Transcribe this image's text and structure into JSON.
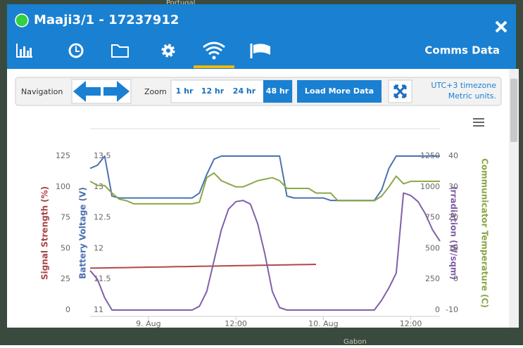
{
  "map_labels": [
    "Portugal",
    "Gabon"
  ],
  "window": {
    "title": "Maaji3/1 - 17237912",
    "section": "Comms Data"
  },
  "toolbar": {
    "navigation": "Navigation",
    "zoom": "Zoom",
    "buttons": [
      "1 hr",
      "12 hr",
      "24 hr",
      "48 hr"
    ],
    "load_more": "Load More Data",
    "timezone": "UTC+3 timezone",
    "units": "Metric units."
  },
  "chart_data": {
    "type": "line",
    "x": [
      -8,
      -7,
      -6,
      -5,
      -4,
      -3,
      -2,
      -1,
      0,
      1,
      2,
      3,
      4,
      5,
      6,
      7,
      8,
      9,
      10,
      11,
      12,
      13,
      14,
      15,
      16,
      17,
      18,
      19,
      20,
      21,
      22,
      23,
      24,
      25,
      26,
      27,
      28,
      29,
      30,
      31,
      32,
      33,
      34,
      35,
      36,
      37,
      38,
      39,
      40
    ],
    "xlim": [
      -8,
      40
    ],
    "xticks": [
      {
        "value": 0,
        "label": "9. Aug"
      },
      {
        "value": 12,
        "label": "12:00"
      },
      {
        "value": 24,
        "label": "10. Aug"
      },
      {
        "value": 36,
        "label": "12:00"
      }
    ],
    "y_axes": [
      {
        "title": "Signal Strength (%)",
        "color": "#a84444",
        "lim": [
          0,
          125
        ],
        "ticks": [
          0,
          25,
          50,
          75,
          100,
          125
        ]
      },
      {
        "title": "Battery Voltage (V)",
        "color": "#4a70b0",
        "lim": [
          11,
          13.5
        ],
        "ticks": [
          11,
          11.5,
          12,
          12.5,
          13,
          13.5
        ]
      },
      {
        "title": "Irradiation (W/sqm)",
        "color": "#7e5ea6",
        "lim": [
          0,
          1250
        ],
        "ticks": [
          0,
          250,
          500,
          750,
          1000,
          1250
        ]
      },
      {
        "title": "Communicator Temperature (C)",
        "color": "#8aa545",
        "lim": [
          -10,
          40
        ],
        "ticks": [
          -10,
          0,
          10,
          20,
          30,
          40
        ]
      }
    ],
    "series": [
      {
        "axis": 0,
        "color": "#b04848",
        "values": [
          34,
          34.1,
          34.2,
          34.3,
          34.4,
          34.5,
          34.6,
          34.7,
          34.8,
          34.9,
          35,
          35.1,
          35.2,
          35.3,
          35.4,
          35.5,
          35.6,
          35.7,
          35.8,
          35.9,
          36,
          36.1,
          36.2,
          36.3,
          36.4,
          36.5,
          36.6,
          36.7,
          36.8,
          36.9,
          37,
          37.1,
          null,
          null,
          null,
          null,
          null,
          null,
          null,
          null,
          null,
          null,
          null,
          null,
          null,
          null,
          null,
          null,
          null
        ]
      },
      {
        "axis": 1,
        "color": "#4a72b0",
        "values": [
          13.3,
          13.35,
          13.5,
          12.85,
          12.82,
          12.82,
          12.82,
          12.82,
          12.82,
          12.82,
          12.82,
          12.82,
          12.82,
          12.82,
          12.82,
          12.9,
          13.2,
          13.45,
          13.5,
          13.5,
          13.5,
          13.5,
          13.5,
          13.5,
          13.5,
          13.5,
          13.5,
          12.85,
          12.82,
          12.82,
          12.82,
          12.82,
          12.82,
          12.78,
          12.78,
          12.78,
          12.78,
          12.78,
          12.78,
          12.78,
          12.95,
          13.3,
          13.5,
          13.5,
          13.5,
          13.5,
          13.5,
          13.5,
          13.5
        ]
      },
      {
        "axis": 3,
        "color": "#8aa84a",
        "values": [
          31.8,
          30.5,
          30.4,
          28,
          26,
          25.5,
          24.5,
          24.5,
          24.5,
          24.5,
          24.5,
          24.5,
          24.5,
          24.5,
          24.5,
          25,
          33,
          34.5,
          32,
          31,
          30,
          30,
          31,
          32,
          32.5,
          33,
          32,
          29.5,
          29.5,
          29.5,
          29.5,
          28,
          28,
          28,
          25.5,
          25.5,
          25.5,
          25.5,
          25.5,
          25.5,
          27,
          30,
          33.5,
          31,
          31.8,
          31.8,
          31.8,
          31.8,
          31.8
        ]
      },
      {
        "axis": 2,
        "color": "#8060a8",
        "values": [
          320,
          250,
          100,
          0,
          0,
          0,
          0,
          0,
          0,
          0,
          0,
          0,
          0,
          0,
          0,
          30,
          150,
          400,
          650,
          820,
          880,
          890,
          860,
          700,
          450,
          150,
          20,
          0,
          0,
          0,
          0,
          0,
          0,
          0,
          0,
          0,
          0,
          0,
          0,
          0,
          80,
          180,
          300,
          950,
          930,
          880,
          780,
          650,
          560
        ]
      }
    ]
  }
}
